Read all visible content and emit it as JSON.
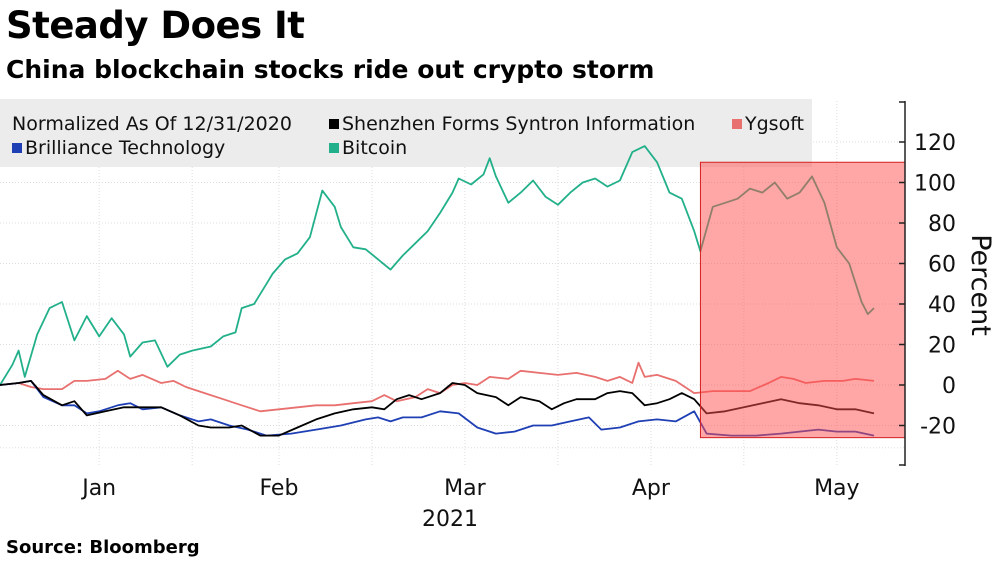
{
  "header": {
    "title": "Steady Does It",
    "subtitle": "China blockchain stocks ride out crypto storm"
  },
  "footer": {
    "source": "Source: Bloomberg"
  },
  "colors": {
    "shenzhen": "#000000",
    "ygsoft": "#e8706f",
    "brilliance": "#1f3fb4",
    "bitcoin": "#22b08a",
    "highlight": "#ff4d4d"
  },
  "chart_data": {
    "type": "line",
    "legend_note": "Normalized As Of 12/31/2020",
    "legend_position": "top-left",
    "ylabel": "Percent",
    "ylim": [
      -40,
      130
    ],
    "yticks": [
      "-20",
      "0",
      "20",
      "40",
      "60",
      "80",
      "100",
      "120"
    ],
    "xlim": [
      "2020-12-31",
      "2021-05-26"
    ],
    "xticks": [
      {
        "label": "Jan",
        "date": "2021-01-16"
      },
      {
        "label": "Feb",
        "date": "2021-02-14"
      },
      {
        "label": "Mar",
        "date": "2021-03-16"
      },
      {
        "label": "Apr",
        "date": "2021-04-15"
      },
      {
        "label": "May",
        "date": "2021-05-15"
      }
    ],
    "year_label": "2021",
    "grid": true,
    "highlight_range": {
      "x": [
        "2021-04-23",
        "2021-05-26"
      ],
      "y": [
        -26,
        110
      ]
    },
    "series": [
      {
        "name": "Shenzhen Forms Syntron Information",
        "color_key": "shenzhen",
        "points": [
          [
            "2020-12-31",
            0
          ],
          [
            "2021-01-03",
            1
          ],
          [
            "2021-01-05",
            2
          ],
          [
            "2021-01-07",
            -5
          ],
          [
            "2021-01-10",
            -10
          ],
          [
            "2021-01-12",
            -8
          ],
          [
            "2021-01-14",
            -15
          ],
          [
            "2021-01-17",
            -13
          ],
          [
            "2021-01-20",
            -11
          ],
          [
            "2021-01-23",
            -11
          ],
          [
            "2021-01-26",
            -11
          ],
          [
            "2021-01-29",
            -15
          ],
          [
            "2021-02-01",
            -20
          ],
          [
            "2021-02-03",
            -21
          ],
          [
            "2021-02-06",
            -21
          ],
          [
            "2021-02-08",
            -20
          ],
          [
            "2021-02-11",
            -25
          ],
          [
            "2021-02-14",
            -25
          ],
          [
            "2021-02-17",
            -21
          ],
          [
            "2021-02-20",
            -17
          ],
          [
            "2021-02-23",
            -14
          ],
          [
            "2021-02-26",
            -12
          ],
          [
            "2021-03-01",
            -11
          ],
          [
            "2021-03-03",
            -12
          ],
          [
            "2021-03-05",
            -7
          ],
          [
            "2021-03-07",
            -5
          ],
          [
            "2021-03-09",
            -7
          ],
          [
            "2021-03-12",
            -4
          ],
          [
            "2021-03-14",
            1
          ],
          [
            "2021-03-16",
            0
          ],
          [
            "2021-03-18",
            -4
          ],
          [
            "2021-03-21",
            -6
          ],
          [
            "2021-03-23",
            -10
          ],
          [
            "2021-03-25",
            -6
          ],
          [
            "2021-03-28",
            -8
          ],
          [
            "2021-03-30",
            -12
          ],
          [
            "2021-04-01",
            -9
          ],
          [
            "2021-04-03",
            -7
          ],
          [
            "2021-04-06",
            -7
          ],
          [
            "2021-04-08",
            -4
          ],
          [
            "2021-04-10",
            -3
          ],
          [
            "2021-04-12",
            -4
          ],
          [
            "2021-04-14",
            -10
          ],
          [
            "2021-04-16",
            -9
          ],
          [
            "2021-04-18",
            -7
          ],
          [
            "2021-04-20",
            -4
          ],
          [
            "2021-04-22",
            -7
          ],
          [
            "2021-04-24",
            -14
          ],
          [
            "2021-04-27",
            -13
          ],
          [
            "2021-04-30",
            -11
          ],
          [
            "2021-05-03",
            -9
          ],
          [
            "2021-05-06",
            -7
          ],
          [
            "2021-05-09",
            -9
          ],
          [
            "2021-05-12",
            -10
          ],
          [
            "2021-05-15",
            -12
          ],
          [
            "2021-05-18",
            -12
          ],
          [
            "2021-05-21",
            -14
          ]
        ]
      },
      {
        "name": "Ygsoft",
        "color_key": "ygsoft",
        "points": [
          [
            "2020-12-31",
            0
          ],
          [
            "2021-01-03",
            1
          ],
          [
            "2021-01-05",
            -1
          ],
          [
            "2021-01-07",
            -2
          ],
          [
            "2021-01-10",
            -2
          ],
          [
            "2021-01-12",
            2
          ],
          [
            "2021-01-14",
            2
          ],
          [
            "2021-01-17",
            3
          ],
          [
            "2021-01-19",
            7
          ],
          [
            "2021-01-21",
            3
          ],
          [
            "2021-01-23",
            5
          ],
          [
            "2021-01-26",
            1
          ],
          [
            "2021-01-28",
            2
          ],
          [
            "2021-01-30",
            -1
          ],
          [
            "2021-02-02",
            -4
          ],
          [
            "2021-02-05",
            -7
          ],
          [
            "2021-02-08",
            -10
          ],
          [
            "2021-02-11",
            -13
          ],
          [
            "2021-02-14",
            -12
          ],
          [
            "2021-02-17",
            -11
          ],
          [
            "2021-02-20",
            -10
          ],
          [
            "2021-02-23",
            -10
          ],
          [
            "2021-02-26",
            -9
          ],
          [
            "2021-03-01",
            -8
          ],
          [
            "2021-03-03",
            -5
          ],
          [
            "2021-03-05",
            -8
          ],
          [
            "2021-03-08",
            -6
          ],
          [
            "2021-03-10",
            -2
          ],
          [
            "2021-03-12",
            -4
          ],
          [
            "2021-03-14",
            0
          ],
          [
            "2021-03-16",
            1
          ],
          [
            "2021-03-18",
            0
          ],
          [
            "2021-03-20",
            4
          ],
          [
            "2021-03-23",
            3
          ],
          [
            "2021-03-25",
            7
          ],
          [
            "2021-03-28",
            6
          ],
          [
            "2021-03-31",
            5
          ],
          [
            "2021-04-03",
            6
          ],
          [
            "2021-04-06",
            4
          ],
          [
            "2021-04-08",
            2
          ],
          [
            "2021-04-10",
            4
          ],
          [
            "2021-04-12",
            1
          ],
          [
            "2021-04-13",
            11
          ],
          [
            "2021-04-14",
            4
          ],
          [
            "2021-04-16",
            5
          ],
          [
            "2021-04-19",
            2
          ],
          [
            "2021-04-22",
            -4
          ],
          [
            "2021-04-25",
            -3
          ],
          [
            "2021-04-28",
            -3
          ],
          [
            "2021-05-01",
            -3
          ],
          [
            "2021-05-04",
            1
          ],
          [
            "2021-05-06",
            4
          ],
          [
            "2021-05-08",
            3
          ],
          [
            "2021-05-10",
            1
          ],
          [
            "2021-05-13",
            2
          ],
          [
            "2021-05-16",
            2
          ],
          [
            "2021-05-18",
            3
          ],
          [
            "2021-05-21",
            2
          ]
        ]
      },
      {
        "name": "Brilliance Technology",
        "color_key": "brilliance",
        "points": [
          [
            "2020-12-31",
            0
          ],
          [
            "2021-01-03",
            1
          ],
          [
            "2021-01-05",
            2
          ],
          [
            "2021-01-07",
            -6
          ],
          [
            "2021-01-10",
            -10
          ],
          [
            "2021-01-12",
            -10
          ],
          [
            "2021-01-14",
            -14
          ],
          [
            "2021-01-16",
            -13
          ],
          [
            "2021-01-19",
            -10
          ],
          [
            "2021-01-21",
            -9
          ],
          [
            "2021-01-23",
            -12
          ],
          [
            "2021-01-26",
            -11
          ],
          [
            "2021-01-29",
            -15
          ],
          [
            "2021-02-01",
            -18
          ],
          [
            "2021-02-03",
            -17
          ],
          [
            "2021-02-06",
            -20
          ],
          [
            "2021-02-09",
            -22
          ],
          [
            "2021-02-12",
            -25
          ],
          [
            "2021-02-16",
            -24
          ],
          [
            "2021-02-20",
            -22
          ],
          [
            "2021-02-24",
            -20
          ],
          [
            "2021-02-28",
            -17
          ],
          [
            "2021-03-02",
            -16
          ],
          [
            "2021-03-04",
            -18
          ],
          [
            "2021-03-06",
            -16
          ],
          [
            "2021-03-09",
            -16
          ],
          [
            "2021-03-12",
            -13
          ],
          [
            "2021-03-15",
            -14
          ],
          [
            "2021-03-18",
            -21
          ],
          [
            "2021-03-21",
            -24
          ],
          [
            "2021-03-24",
            -23
          ],
          [
            "2021-03-27",
            -20
          ],
          [
            "2021-03-30",
            -20
          ],
          [
            "2021-04-02",
            -18
          ],
          [
            "2021-04-05",
            -16
          ],
          [
            "2021-04-07",
            -22
          ],
          [
            "2021-04-10",
            -21
          ],
          [
            "2021-04-13",
            -18
          ],
          [
            "2021-04-16",
            -17
          ],
          [
            "2021-04-19",
            -18
          ],
          [
            "2021-04-22",
            -13
          ],
          [
            "2021-04-24",
            -24
          ],
          [
            "2021-04-28",
            -25
          ],
          [
            "2021-05-02",
            -25
          ],
          [
            "2021-05-06",
            -24
          ],
          [
            "2021-05-09",
            -23
          ],
          [
            "2021-05-12",
            -22
          ],
          [
            "2021-05-15",
            -23
          ],
          [
            "2021-05-18",
            -23
          ],
          [
            "2021-05-21",
            -25
          ]
        ]
      },
      {
        "name": "Bitcoin",
        "color_key": "bitcoin",
        "points": [
          [
            "2020-12-31",
            0
          ],
          [
            "2021-01-02",
            10
          ],
          [
            "2021-01-03",
            17
          ],
          [
            "2021-01-04",
            4
          ],
          [
            "2021-01-06",
            25
          ],
          [
            "2021-01-08",
            38
          ],
          [
            "2021-01-10",
            41
          ],
          [
            "2021-01-12",
            22
          ],
          [
            "2021-01-14",
            34
          ],
          [
            "2021-01-16",
            24
          ],
          [
            "2021-01-18",
            33
          ],
          [
            "2021-01-20",
            25
          ],
          [
            "2021-01-21",
            14
          ],
          [
            "2021-01-23",
            21
          ],
          [
            "2021-01-25",
            22
          ],
          [
            "2021-01-27",
            9
          ],
          [
            "2021-01-29",
            15
          ],
          [
            "2021-01-31",
            17
          ],
          [
            "2021-02-03",
            19
          ],
          [
            "2021-02-05",
            24
          ],
          [
            "2021-02-07",
            26
          ],
          [
            "2021-02-08",
            38
          ],
          [
            "2021-02-10",
            40
          ],
          [
            "2021-02-12",
            50
          ],
          [
            "2021-02-13",
            55
          ],
          [
            "2021-02-15",
            62
          ],
          [
            "2021-02-17",
            65
          ],
          [
            "2021-02-19",
            73
          ],
          [
            "2021-02-21",
            96
          ],
          [
            "2021-02-23",
            88
          ],
          [
            "2021-02-24",
            78
          ],
          [
            "2021-02-26",
            68
          ],
          [
            "2021-02-28",
            67
          ],
          [
            "2021-03-02",
            62
          ],
          [
            "2021-03-04",
            57
          ],
          [
            "2021-03-06",
            64
          ],
          [
            "2021-03-08",
            70
          ],
          [
            "2021-03-10",
            76
          ],
          [
            "2021-03-12",
            85
          ],
          [
            "2021-03-14",
            95
          ],
          [
            "2021-03-15",
            102
          ],
          [
            "2021-03-17",
            99
          ],
          [
            "2021-03-19",
            104
          ],
          [
            "2021-03-20",
            112
          ],
          [
            "2021-03-21",
            103
          ],
          [
            "2021-03-23",
            90
          ],
          [
            "2021-03-25",
            95
          ],
          [
            "2021-03-27",
            101
          ],
          [
            "2021-03-29",
            93
          ],
          [
            "2021-03-31",
            89
          ],
          [
            "2021-04-02",
            95
          ],
          [
            "2021-04-04",
            100
          ],
          [
            "2021-04-06",
            102
          ],
          [
            "2021-04-08",
            98
          ],
          [
            "2021-04-10",
            101
          ],
          [
            "2021-04-12",
            115
          ],
          [
            "2021-04-14",
            118
          ],
          [
            "2021-04-16",
            110
          ],
          [
            "2021-04-18",
            95
          ],
          [
            "2021-04-20",
            92
          ],
          [
            "2021-04-22",
            76
          ],
          [
            "2021-04-23",
            66
          ],
          [
            "2021-04-25",
            88
          ],
          [
            "2021-04-27",
            90
          ],
          [
            "2021-04-29",
            92
          ],
          [
            "2021-05-01",
            97
          ],
          [
            "2021-05-03",
            95
          ],
          [
            "2021-05-05",
            100
          ],
          [
            "2021-05-07",
            92
          ],
          [
            "2021-05-09",
            95
          ],
          [
            "2021-05-11",
            103
          ],
          [
            "2021-05-13",
            90
          ],
          [
            "2021-05-15",
            68
          ],
          [
            "2021-05-17",
            60
          ],
          [
            "2021-05-19",
            41
          ],
          [
            "2021-05-20",
            35
          ],
          [
            "2021-05-21",
            38
          ]
        ]
      }
    ]
  }
}
